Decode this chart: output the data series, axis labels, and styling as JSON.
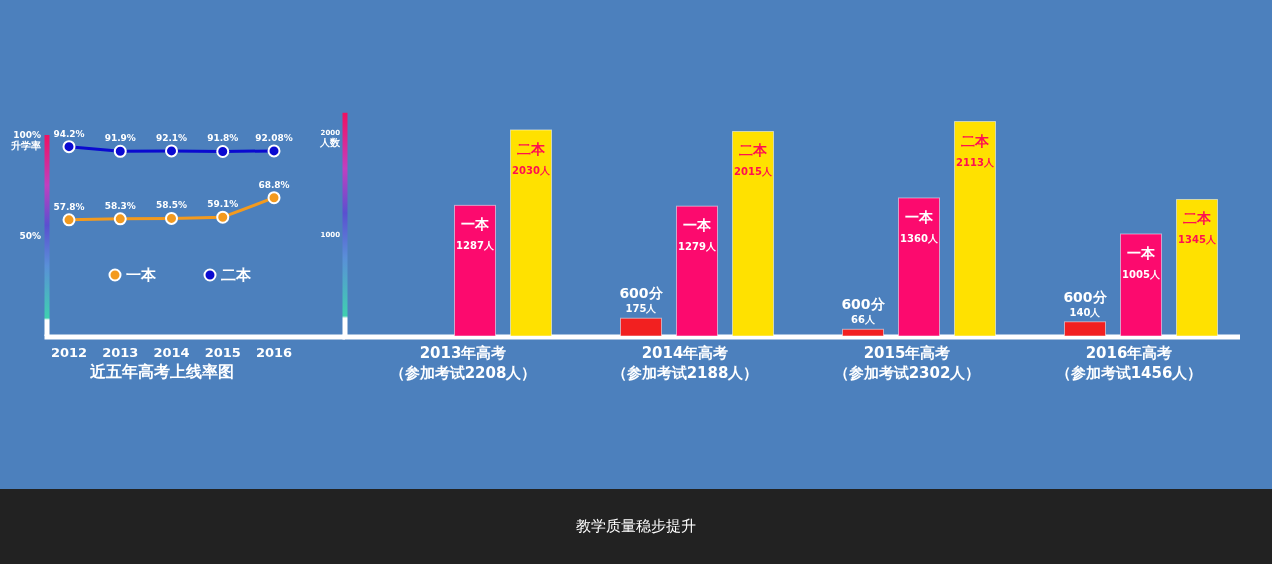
{
  "chart_data": [
    {
      "type": "line",
      "title": "近五年高考上线率图",
      "categories": [
        "2012",
        "2013",
        "2014",
        "2015",
        "2016"
      ],
      "ylim": [
        0,
        100
      ],
      "yticks": [
        {
          "value": 50,
          "label": "50%"
        },
        {
          "value": 100,
          "label": "100%"
        }
      ],
      "ylabel": "升学率",
      "legend": "center",
      "marker": "circle",
      "series": [
        {
          "name": "一本",
          "color": "#f39a1e",
          "values": [
            57.8,
            58.3,
            58.5,
            59.1,
            68.8
          ],
          "value_labels": [
            "57.8%",
            "58.3%",
            "58.5%",
            "59.1%",
            "68.8%"
          ]
        },
        {
          "name": "二本",
          "color": "#0a0ad0",
          "values": [
            94.2,
            91.9,
            92.1,
            91.8,
            92.08
          ],
          "value_labels": [
            "94.2%",
            "91.9%",
            "92.1%",
            "91.8%",
            "92.08%"
          ]
        }
      ]
    },
    {
      "type": "bar",
      "categories": [
        "2013年高考（参加考试2208人）",
        "2014年高考（参加考试2188人）",
        "2015年高考（参加考试2302人）",
        "2016年高考（参加考试1456人）"
      ],
      "ylim": [
        0,
        2200
      ],
      "yticks": [
        1000,
        2000
      ],
      "ylabel": "人数",
      "annotations": [
        "教学质量稳步提升"
      ],
      "series": [
        {
          "name": "600分",
          "color": "#f22020",
          "values": [
            null,
            175,
            66,
            140
          ],
          "value_labels": [
            null,
            "175人",
            "66人",
            "140人"
          ]
        },
        {
          "name": "一本",
          "color": "#fc0a6e",
          "values": [
            1287,
            1279,
            1360,
            1005
          ],
          "value_labels": [
            "1287人",
            "1279人",
            "1360人",
            "1005人"
          ]
        },
        {
          "name": "二本",
          "color": "#ffe100",
          "values": [
            2030,
            2015,
            2113,
            1345
          ],
          "value_labels": [
            "2030人",
            "2015人",
            "2113人",
            "1345人"
          ]
        }
      ]
    }
  ]
}
